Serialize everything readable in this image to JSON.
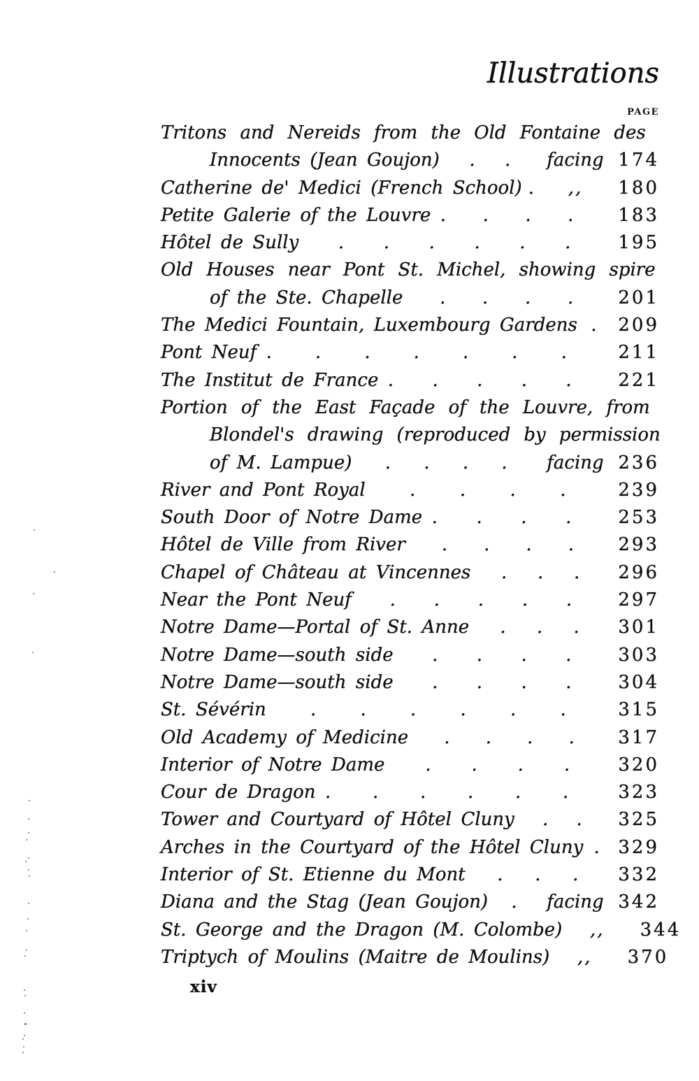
{
  "header": {
    "title": "Illustrations",
    "page_label": "PAGE"
  },
  "footer": {
    "folio": "xiv"
  },
  "entries": [
    {
      "lines": [
        "Tritons and Nereids from the Old Fontaine des",
        "Innocents (Jean Goujon)"
      ],
      "dots": 2,
      "prefix": "facing",
      "page": "174"
    },
    {
      "lines": [
        "Catherine de' Medici (French School)"
      ],
      "dots": 1,
      "prefix": ",,",
      "page": "180"
    },
    {
      "lines": [
        "Petite Galerie of the Louvre ."
      ],
      "dots": 3,
      "prefix": "",
      "page": "183"
    },
    {
      "lines": [
        "Hôtel de Sully"
      ],
      "dots": 6,
      "prefix": "",
      "page": "195"
    },
    {
      "lines": [
        "Old Houses near Pont St. Michel, showing spire",
        "of the Ste. Chapelle"
      ],
      "dots": 4,
      "prefix": "",
      "page": "201"
    },
    {
      "lines": [
        "The Medici Fountain, Luxembourg Gardens"
      ],
      "dots": 1,
      "prefix": "",
      "page": "209"
    },
    {
      "lines": [
        "Pont Neuf ."
      ],
      "dots": 6,
      "prefix": "",
      "page": "211"
    },
    {
      "lines": [
        "The Institut de France ."
      ],
      "dots": 4,
      "prefix": "",
      "page": "221"
    },
    {
      "lines": [
        "Portion of the East Façade of the Louvre, from",
        "Blondel's drawing (reproduced by permission",
        "of M. Lampue)"
      ],
      "dots": 4,
      "prefix": "facing",
      "page": "236"
    },
    {
      "lines": [
        "River and Pont Royal"
      ],
      "dots": 4,
      "prefix": "",
      "page": "239"
    },
    {
      "lines": [
        "South Door of Notre Dame ."
      ],
      "dots": 3,
      "prefix": "",
      "page": "253"
    },
    {
      "lines": [
        "Hôtel de Ville from River"
      ],
      "dots": 4,
      "prefix": "",
      "page": "293"
    },
    {
      "lines": [
        "Chapel of Château at Vincennes"
      ],
      "dots": 3,
      "prefix": "",
      "page": "296"
    },
    {
      "lines": [
        "Near the Pont Neuf"
      ],
      "dots": 5,
      "prefix": "",
      "page": "297"
    },
    {
      "lines": [
        "Notre Dame—Portal of St. Anne"
      ],
      "dots": 3,
      "prefix": "",
      "page": "301"
    },
    {
      "lines": [
        "Notre Dame—south side"
      ],
      "dots": 4,
      "prefix": "",
      "page": "303"
    },
    {
      "lines": [
        "Notre Dame—south side"
      ],
      "dots": 4,
      "prefix": "",
      "page": "304"
    },
    {
      "lines": [
        "St. Sévérin"
      ],
      "dots": 6,
      "prefix": "",
      "page": "315"
    },
    {
      "lines": [
        "Old Academy of Medicine"
      ],
      "dots": 4,
      "prefix": "",
      "page": "317"
    },
    {
      "lines": [
        "Interior of Notre Dame"
      ],
      "dots": 4,
      "prefix": "",
      "page": "320"
    },
    {
      "lines": [
        "Cour de Dragon ."
      ],
      "dots": 5,
      "prefix": "",
      "page": "323"
    },
    {
      "lines": [
        "Tower and Courtyard of Hôtel Cluny"
      ],
      "dots": 2,
      "prefix": "",
      "page": "325"
    },
    {
      "lines": [
        "Arches in the Courtyard of the Hôtel Cluny"
      ],
      "dots": 1,
      "prefix": "",
      "page": "329"
    },
    {
      "lines": [
        "Interior of St. Etienne du Mont"
      ],
      "dots": 3,
      "prefix": "",
      "page": "332"
    },
    {
      "lines": [
        "Diana and the Stag (Jean Goujon)"
      ],
      "dots": 1,
      "prefix": "facing",
      "page": "342"
    },
    {
      "lines": [
        "St. George and the Dragon (M. Colombe)"
      ],
      "dots": 0,
      "prefix": ",,",
      "page": "344"
    },
    {
      "lines": [
        "Triptych of Moulins (Maitre de Moulins)"
      ],
      "dots": 0,
      "prefix": ",,",
      "page": "370"
    }
  ]
}
